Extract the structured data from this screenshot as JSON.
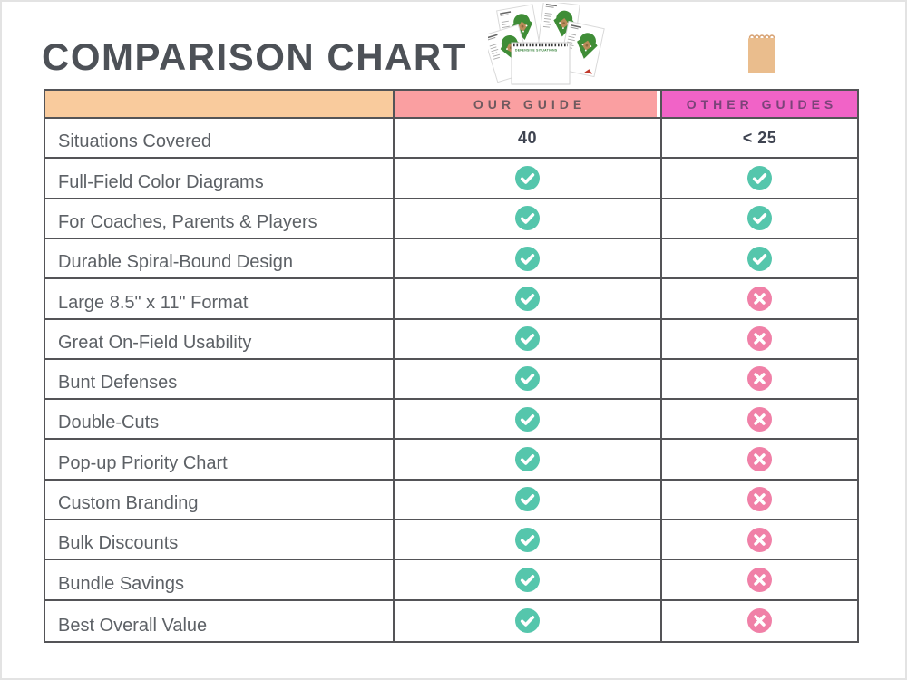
{
  "chart_data": {
    "type": "table",
    "title": "COMPARISON CHART",
    "columns": [
      "",
      "OUR GUIDE",
      "OTHER GUIDES"
    ],
    "rows": [
      {
        "label": "Situations Covered",
        "our": "40",
        "other": "< 25"
      },
      {
        "label": "Full-Field Color Diagrams",
        "our": "check",
        "other": "check"
      },
      {
        "label": "For Coaches, Parents & Players",
        "our": "check",
        "other": "check"
      },
      {
        "label": "Durable Spiral-Bound Design",
        "our": "check",
        "other": "check"
      },
      {
        "label": "Large 8.5\" x 11\" Format",
        "our": "check",
        "other": "cross"
      },
      {
        "label": "Great On-Field Usability",
        "our": "check",
        "other": "cross"
      },
      {
        "label": "Bunt Defenses",
        "our": "check",
        "other": "cross"
      },
      {
        "label": "Double-Cuts",
        "our": "check",
        "other": "cross"
      },
      {
        "label": "Pop-up Priority Chart",
        "our": "check",
        "other": "cross"
      },
      {
        "label": "Custom Branding",
        "our": "check",
        "other": "cross"
      },
      {
        "label": "Bulk Discounts",
        "our": "check",
        "other": "cross"
      },
      {
        "label": "Bundle Savings",
        "our": "check",
        "other": "cross"
      },
      {
        "label": "Best Overall Value",
        "our": "check",
        "other": "cross"
      }
    ],
    "legend": "none",
    "grid": "ruled table, 2px dark gray lines"
  },
  "graphics": {
    "booklets_icon": "spiral-baseball-field-booklets",
    "pad_cover_title": "DEFENSIVE SITUATIONS",
    "notepad_icon": "tan-spiral-notepad"
  },
  "icons": {
    "check": "check-icon",
    "cross": "cross-icon"
  },
  "header_styles": [
    {
      "bg": "#f9cb9d",
      "text": "#6f5a5f"
    },
    {
      "bg": "#fa9fa1",
      "text": "#6f5a5f"
    },
    {
      "bg": "#f163c7",
      "text": "#7b4379"
    }
  ],
  "colors": {
    "check": "#55c6ac",
    "cross": "#f080a7",
    "border": "#545457",
    "label_text": "#5d6166",
    "value_text": "#3e4350",
    "title_text": "#4d5157",
    "notepad": "#eabd8d",
    "notepad_coil": "#d9a577",
    "field_green": "#3f8d37",
    "infield_tan": "#b98d5a"
  }
}
